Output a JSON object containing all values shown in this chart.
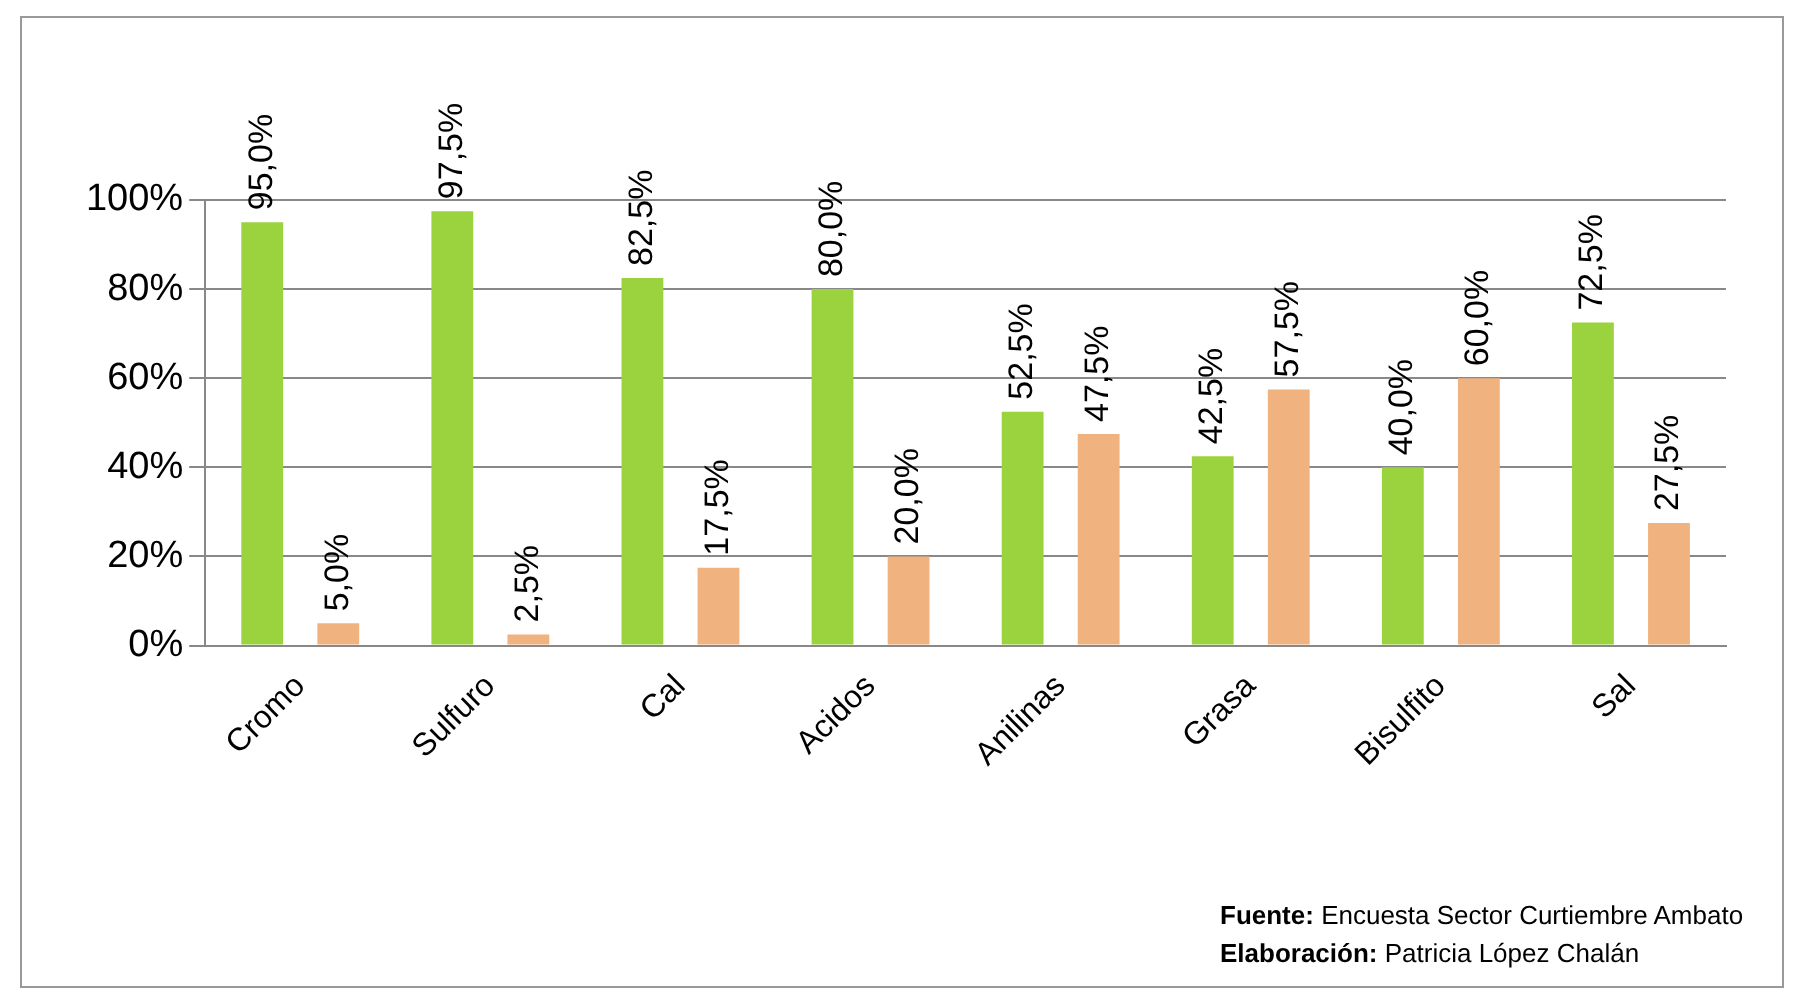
{
  "chart_data": {
    "type": "bar",
    "categories": [
      "Cromo",
      "Sulfuro",
      "Cal",
      "Acidos",
      "Anilinas",
      "Grasa",
      "Bisulfito",
      "Sal"
    ],
    "series": [
      {
        "color": "#9bd33f",
        "values": [
          95.0,
          97.5,
          82.5,
          80.0,
          52.5,
          42.5,
          40.0,
          72.5
        ],
        "value_labels": [
          "95,0%",
          "97,5%",
          "82,5%",
          "80,0%",
          "52,5%",
          "42,5%",
          "40,0%",
          "72,5%"
        ]
      },
      {
        "color": "#f0b27e",
        "values": [
          5.0,
          2.5,
          17.5,
          20.0,
          47.5,
          57.5,
          60.0,
          27.5
        ],
        "value_labels": [
          "5,0%",
          "2,5%",
          "17,5%",
          "20,0%",
          "47,5%",
          "57,5%",
          "60,0%",
          "27,5%"
        ]
      }
    ],
    "ylim": [
      0,
      100
    ],
    "yticks": [
      {
        "value": 0,
        "label": "0%"
      },
      {
        "value": 20,
        "label": "20%"
      },
      {
        "value": 40,
        "label": "40%"
      },
      {
        "value": 60,
        "label": "60%"
      },
      {
        "value": 80,
        "label": "80%"
      },
      {
        "value": 100,
        "label": "100%"
      }
    ],
    "grid": "y",
    "legend": false,
    "annotations": [
      "Fuente: Encuesta Sector Curtiembre Ambato",
      "Elaboración: Patricia López Chalán"
    ]
  }
}
